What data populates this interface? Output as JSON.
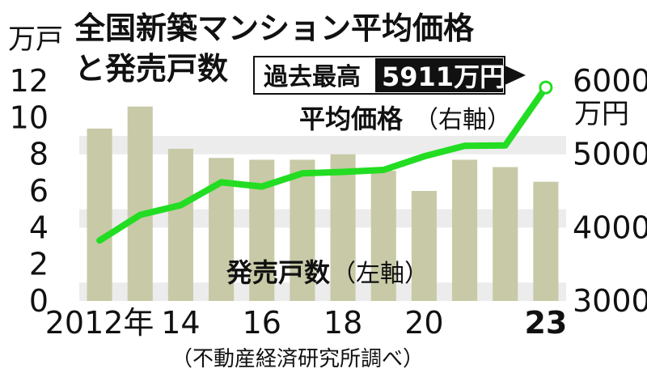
{
  "chart_data": {
    "type": "bar+line",
    "title_line1": "全国新築マンション平均価格",
    "title_line2": "と発売戸数",
    "categories": [
      "2012",
      "2013",
      "2014",
      "2015",
      "2016",
      "2017",
      "2018",
      "2019",
      "2020",
      "2021",
      "2022",
      "2023"
    ],
    "x_tick_labels": [
      "2012年",
      "",
      "14",
      "",
      "16",
      "",
      "18",
      "",
      "20",
      "",
      "",
      "23"
    ],
    "left_axis": {
      "unit": "万戸",
      "min": 0,
      "max": 12,
      "ticks": [
        "0",
        "2",
        "4",
        "6",
        "8",
        "10",
        "12"
      ]
    },
    "right_axis": {
      "unit": "万円",
      "min": 3000,
      "max": 6000,
      "ticks": [
        "3000",
        "4000",
        "5000",
        "6000"
      ]
    },
    "series": [
      {
        "name": "発売戸数",
        "axis_note": "（左軸）",
        "type": "bar",
        "values": [
          9.4,
          10.6,
          8.3,
          7.8,
          7.7,
          7.7,
          8.0,
          7.1,
          6.0,
          7.7,
          7.3,
          6.5
        ]
      },
      {
        "name": "平均価格",
        "axis_note": "（右軸）",
        "type": "line",
        "values": [
          3824,
          4174,
          4306,
          4618,
          4560,
          4739,
          4759,
          4787,
          4971,
          5115,
          5121,
          5911
        ]
      }
    ],
    "callout": {
      "label": "過去最高",
      "value": "5911万円"
    },
    "source": "（不動産経済研究所調べ）",
    "colors": {
      "bar": "#c8c9a6",
      "line": "#22dd22",
      "band": "#ececec",
      "callout_bg": "#111111"
    },
    "grid": "alternating horizontal bands"
  }
}
